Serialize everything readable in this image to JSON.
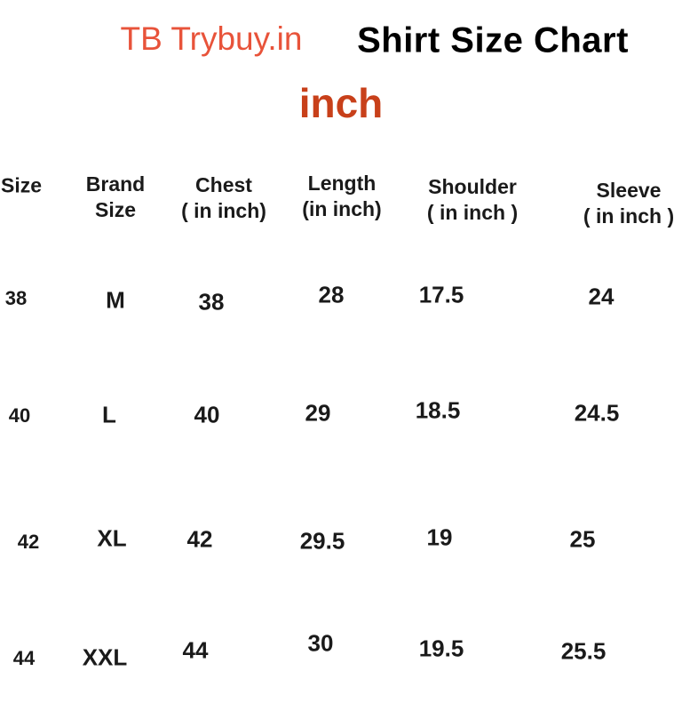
{
  "header": {
    "brand": "TB Trybuy.in",
    "title": "Shirt Size Chart",
    "unit": "inch",
    "colors": {
      "brand": "#e8533a",
      "unit": "#c8401a",
      "text": "#111111"
    }
  },
  "table": {
    "columns": [
      [
        "Size"
      ],
      [
        "Brand",
        "Size"
      ],
      [
        "Chest",
        "( in inch)"
      ],
      [
        "Length",
        "(in inch)"
      ],
      [
        "Shoulder",
        "( in inch )"
      ],
      [
        "Sleeve",
        "( in inch )"
      ]
    ],
    "rows": [
      [
        "38",
        "M",
        "38",
        "28",
        "17.5",
        "24"
      ],
      [
        "40",
        "L",
        "40",
        "29",
        "18.5",
        "24.5"
      ],
      [
        "42",
        "XL",
        "42",
        "29.5",
        "19",
        "25"
      ],
      [
        "44",
        "XXL",
        "44",
        "30",
        "19.5",
        "25.5"
      ]
    ]
  }
}
